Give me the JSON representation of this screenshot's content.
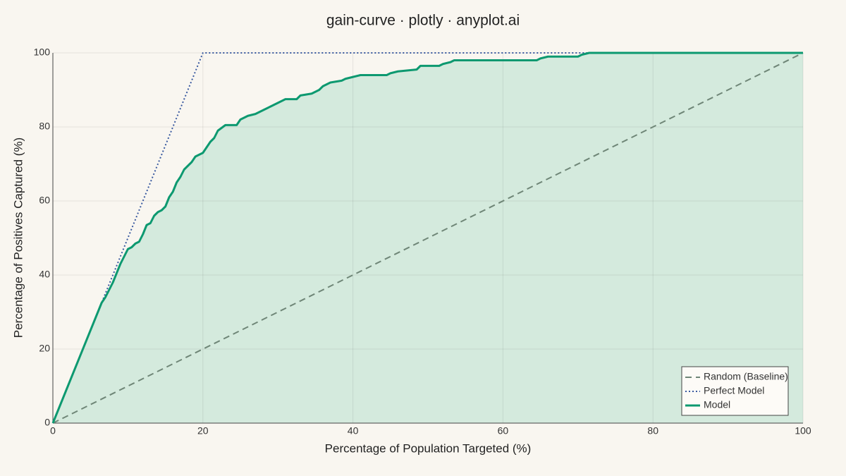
{
  "chart_data": {
    "type": "line",
    "title": "gain-curve · plotly · anyplot.ai",
    "x_label": "Percentage of Population Targeted (%)",
    "y_label": "Percentage of Positives Captured (%)",
    "xlim": [
      0,
      100
    ],
    "ylim": [
      0,
      100
    ],
    "xticks": [
      0,
      20,
      40,
      60,
      80,
      100
    ],
    "yticks": [
      0,
      20,
      40,
      60,
      80,
      100
    ],
    "grid": true,
    "legend_position": "bottom-right",
    "series": [
      {
        "name": "Random (Baseline)",
        "color": "#6f8677",
        "dash": "dash",
        "x": [
          0,
          100
        ],
        "values": [
          0,
          100
        ]
      },
      {
        "name": "Perfect Model",
        "color": "#3a5aa0",
        "dash": "dot",
        "x": [
          0,
          20,
          100
        ],
        "values": [
          0,
          100,
          100
        ]
      },
      {
        "name": "Model",
        "color": "#0d9970",
        "dash": "solid",
        "fill": "tozeroy",
        "fill_color": "#d4eadd",
        "x": [
          0,
          6.5,
          7,
          8,
          9,
          10,
          10.5,
          11,
          11.5,
          12,
          12.5,
          13,
          13.5,
          14,
          14.5,
          15,
          15.5,
          16,
          16.5,
          17,
          17.5,
          18,
          18.5,
          19,
          19.5,
          20,
          20.5,
          21,
          21.5,
          22,
          23,
          24.5,
          25,
          26,
          27,
          28,
          29,
          30,
          31,
          32.5,
          33,
          34.5,
          35.5,
          36,
          37,
          38.5,
          39,
          40,
          41,
          44.5,
          45,
          46,
          48.5,
          49,
          51.5,
          52,
          53,
          53.5,
          64.5,
          65,
          66,
          70,
          70.5,
          71.5,
          100
        ],
        "values": [
          0,
          32.5,
          34,
          38,
          43,
          47,
          47.5,
          48.5,
          49,
          51,
          53.5,
          54,
          56,
          57,
          57.5,
          58.5,
          61,
          62.5,
          65,
          66.5,
          68.5,
          69.5,
          70.5,
          72,
          72.5,
          73,
          74.5,
          76,
          77,
          79,
          80.5,
          80.5,
          82,
          83,
          83.5,
          84.5,
          85.5,
          86.5,
          87.5,
          87.5,
          88.5,
          89,
          90,
          91,
          92,
          92.5,
          93,
          93.5,
          94,
          94,
          94.5,
          95,
          95.5,
          96.5,
          96.5,
          97,
          97.5,
          98,
          98,
          98.5,
          99,
          99,
          99.5,
          100,
          100
        ]
      }
    ]
  }
}
